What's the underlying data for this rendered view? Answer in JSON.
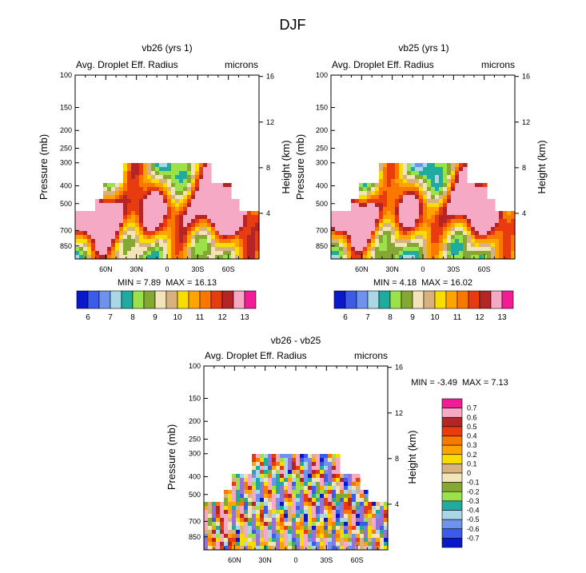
{
  "page_title": "DJF",
  "palette": [
    "#9473d6",
    "#0a18cc",
    "#3b5be8",
    "#6f92ec",
    "#a9d7e6",
    "#1fab9f",
    "#9be14a",
    "#84a832",
    "#f3e3b8",
    "#d7b27e",
    "#f7dd00",
    "#fda400",
    "#fb7800",
    "#e83c10",
    "#b52525",
    "#f6a9c4",
    "#f21c97"
  ],
  "chart_data": [
    {
      "type": "heatmap",
      "title": "vb26 (yrs 1)",
      "left_label": "Avg. Droplet Eff. Radius",
      "right_label": "microns",
      "ylabel": "Pressure (mb)",
      "ylabel2": "Height (km)",
      "x_ticks": [
        "60N",
        "30N",
        "0",
        "30S",
        "60S"
      ],
      "x_values": [
        60,
        30,
        0,
        -30,
        -60
      ],
      "xlim": [
        90,
        -90
      ],
      "y_ticks": [
        "100",
        "150",
        "200",
        "250",
        "300",
        "400",
        "500",
        "700",
        "850"
      ],
      "y_values": [
        100,
        150,
        200,
        250,
        300,
        400,
        500,
        700,
        850
      ],
      "ylim": [
        100,
        1000
      ],
      "height_ticks": [
        "16",
        "12",
        "8",
        "4"
      ],
      "height_values": [
        16,
        12,
        8,
        4
      ],
      "min_text": "MIN =   7.89",
      "max_text": "MAX =  16.13",
      "colorbar_labels": [
        "6",
        "7",
        "8",
        "9",
        "10",
        "11",
        "12",
        "13"
      ],
      "colorbar_levels": [
        6,
        6.5,
        7,
        7.5,
        8,
        8.5,
        9,
        9.5,
        10,
        10.5,
        11,
        11.5,
        12,
        12.5,
        13
      ],
      "offset": 0
    },
    {
      "type": "heatmap",
      "title": "vb25 (yrs 1)",
      "left_label": "Avg. Droplet Eff. Radius",
      "right_label": "microns",
      "ylabel": "Pressure (mb)",
      "ylabel2": "Height (km)",
      "x_ticks": [
        "60N",
        "30N",
        "0",
        "30S",
        "60S"
      ],
      "x_values": [
        60,
        30,
        0,
        -30,
        -60
      ],
      "xlim": [
        90,
        -90
      ],
      "y_ticks": [
        "100",
        "150",
        "200",
        "250",
        "300",
        "400",
        "500",
        "700",
        "850"
      ],
      "y_values": [
        100,
        150,
        200,
        250,
        300,
        400,
        500,
        700,
        850
      ],
      "ylim": [
        100,
        1000
      ],
      "height_ticks": [
        "16",
        "12",
        "8",
        "4"
      ],
      "height_values": [
        16,
        12,
        8,
        4
      ],
      "min_text": "MIN =   4.18",
      "max_text": "MAX =  16.02",
      "colorbar_labels": [
        "6",
        "7",
        "8",
        "9",
        "10",
        "11",
        "12",
        "13"
      ],
      "colorbar_levels": [
        6,
        6.5,
        7,
        7.5,
        8,
        8.5,
        9,
        9.5,
        10,
        10.5,
        11,
        11.5,
        12,
        12.5,
        13
      ],
      "offset": -0.4
    },
    {
      "type": "heatmap",
      "title": "vb26 - vb25",
      "left_label": "Avg. Droplet Eff. Radius",
      "right_label": "microns",
      "ylabel": "Pressure (mb)",
      "ylabel2": "Height (km)",
      "x_ticks": [
        "60N",
        "30N",
        "0",
        "30S",
        "60S"
      ],
      "x_values": [
        60,
        30,
        0,
        -30,
        -60
      ],
      "xlim": [
        90,
        -90
      ],
      "y_ticks": [
        "100",
        "150",
        "200",
        "250",
        "300",
        "400",
        "500",
        "700",
        "850"
      ],
      "y_values": [
        100,
        150,
        200,
        250,
        300,
        400,
        500,
        700,
        850
      ],
      "ylim": [
        100,
        1000
      ],
      "height_ticks": [
        "16",
        "12",
        "8",
        "4"
      ],
      "height_values": [
        16,
        12,
        8,
        4
      ],
      "min_text": "MIN =  -3.49",
      "max_text": "MAX =   7.13",
      "colorbar_labels": [
        "0.7",
        "0.6",
        "0.5",
        "0.4",
        "0.3",
        "0.2",
        "0.1",
        "0",
        "-0.1",
        "-0.2",
        "-0.3",
        "-0.4",
        "-0.5",
        "-0.6",
        "-0.7"
      ],
      "colorbar_levels": [
        0.7,
        0.6,
        0.5,
        0.4,
        0.3,
        0.2,
        0.1,
        0,
        -0.1,
        -0.2,
        -0.3,
        -0.4,
        -0.5,
        -0.6,
        -0.7
      ]
    }
  ]
}
